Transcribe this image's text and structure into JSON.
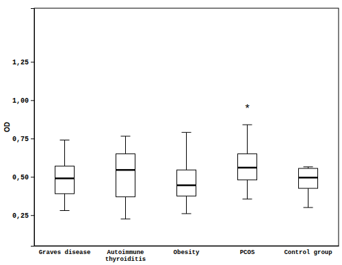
{
  "chart_data": {
    "type": "box",
    "y_label": "OD",
    "categories": [
      "Graves disease",
      "Autoimmune thyroiditis",
      "Obesity",
      "PCOS",
      "Control group"
    ],
    "whisker_low": [
      0.28,
      0.225,
      0.26,
      0.355,
      0.3
    ],
    "q1": [
      0.39,
      0.37,
      0.375,
      0.48,
      0.425
    ],
    "median": [
      0.49,
      0.545,
      0.445,
      0.56,
      0.495
    ],
    "q3": [
      0.57,
      0.65,
      0.545,
      0.65,
      0.555
    ],
    "whisker_high": [
      0.74,
      0.765,
      0.79,
      0.84,
      0.565
    ],
    "color": "#ffffff",
    "ylim": [
      0.05,
      1.6
    ],
    "yticks": [
      {
        "value": 0.25,
        "label": "0,25"
      },
      {
        "value": 0.5,
        "label": "0,50"
      },
      {
        "value": 0.75,
        "label": "0,75"
      },
      {
        "value": 1.0,
        "label": "1,00"
      },
      {
        "value": 1.25,
        "label": "1,25"
      }
    ],
    "grid": false,
    "annotations": [
      {
        "text": "*",
        "category": "PCOS"
      }
    ]
  }
}
